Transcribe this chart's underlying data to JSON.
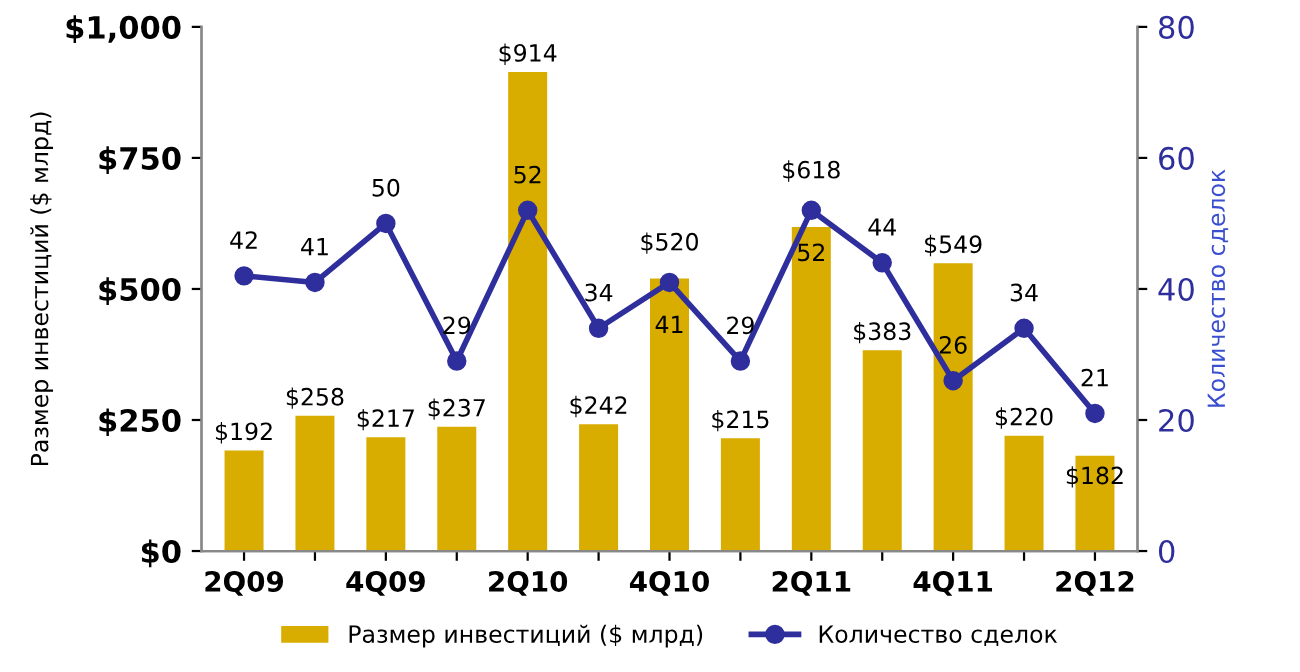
{
  "chart_data": {
    "type": "bar",
    "categories": [
      "2Q09",
      null,
      "4Q09",
      null,
      "2Q10",
      null,
      "4Q10",
      null,
      "2Q11",
      null,
      "4Q11",
      null,
      "2Q12"
    ],
    "series": [
      {
        "name": "Размер инвестиций ($ млрд)",
        "color": "#d9ac00",
        "values": [
          192,
          258,
          217,
          237,
          914,
          242,
          520,
          215,
          618,
          383,
          549,
          220,
          182
        ],
        "value_labels": [
          "$192",
          "$258",
          "$217",
          "$237",
          "$914",
          "$242",
          "$520",
          "$215",
          "$618",
          "$383",
          "$549",
          "$220",
          "$182"
        ]
      },
      {
        "name": "Количество сделок",
        "type": "line",
        "axis": "y2",
        "color": "#2e2e9c",
        "values": [
          42,
          41,
          50,
          29,
          52,
          34,
          41,
          29,
          52,
          44,
          26,
          34,
          21
        ],
        "value_labels": [
          "42",
          "41",
          "50",
          "29",
          "52",
          "34",
          "41",
          "29",
          "52",
          "44",
          "26",
          "34",
          "21"
        ]
      }
    ],
    "ylabel": "Размер инвестиций ($ млрд)",
    "y2label": "Количество сделок",
    "ylim": [
      0,
      1000
    ],
    "yticks": [
      {
        "value": 0,
        "label": "$0"
      },
      {
        "value": 250,
        "label": "$250"
      },
      {
        "value": 500,
        "label": "$500"
      },
      {
        "value": 750,
        "label": "$750"
      },
      {
        "value": 1000,
        "label": "$1,000"
      }
    ],
    "y2lim": [
      0,
      80
    ],
    "y2ticks": [
      0,
      20,
      40,
      60,
      80
    ],
    "marker": "circle",
    "line_style": "solid",
    "legend": "bottom",
    "grid": false
  }
}
